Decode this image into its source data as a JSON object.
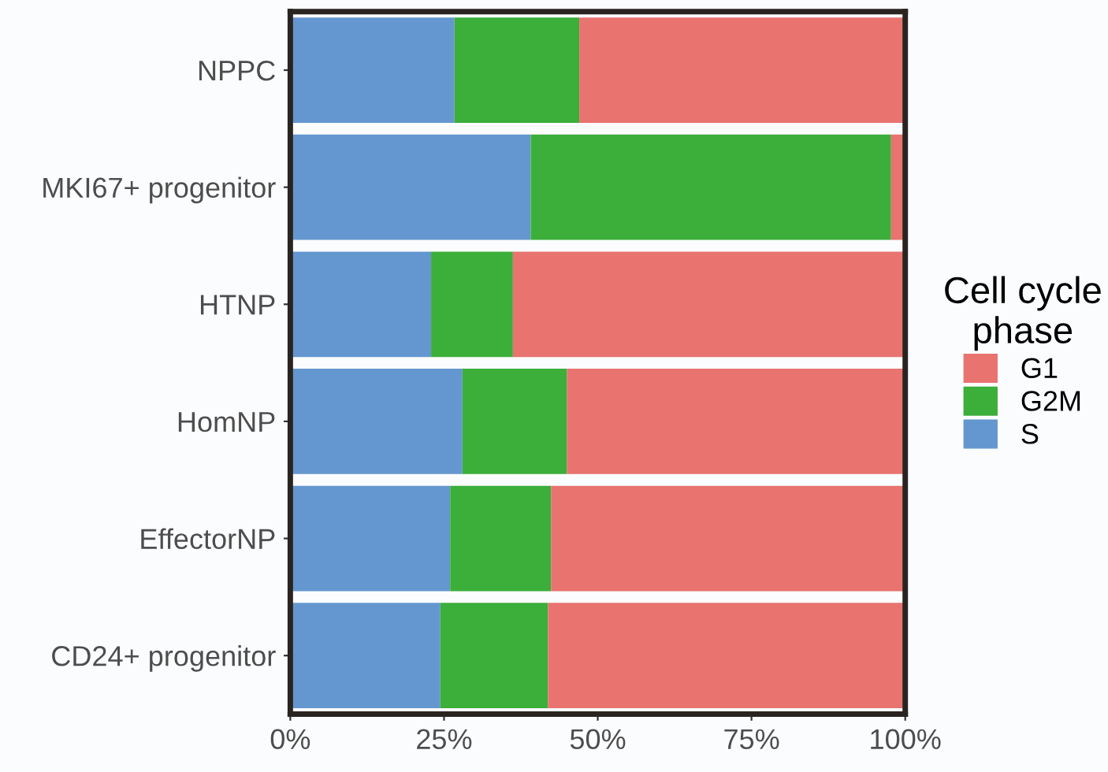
{
  "chart_data": {
    "type": "bar",
    "orientation": "horizontal",
    "stacked": true,
    "legend_title": "Cell cycle\nphase",
    "legend": "right",
    "grid": false,
    "categories": [
      "NPPC",
      "MKI67+ progenitor",
      "HTNP",
      "HomNP",
      "EffectorNP",
      "CD24+ progenitor"
    ],
    "series": [
      {
        "name": "S",
        "color": "#6497d0",
        "values": [
          26.7,
          39.1,
          22.9,
          28.0,
          26.0,
          24.4
        ]
      },
      {
        "name": "G2M",
        "color": "#3cae3a",
        "values": [
          20.3,
          58.6,
          13.3,
          17.0,
          16.4,
          17.5
        ]
      },
      {
        "name": "G1",
        "color": "#e8736f",
        "values": [
          53.0,
          2.3,
          63.8,
          55.0,
          57.6,
          58.1
        ]
      }
    ],
    "xlim": [
      0,
      100
    ],
    "xticks": [
      {
        "value": 0,
        "label": "0%"
      },
      {
        "value": 25,
        "label": "25%"
      },
      {
        "value": 50,
        "label": "50%"
      },
      {
        "value": 75,
        "label": "75%"
      },
      {
        "value": 100,
        "label": "100%"
      }
    ]
  }
}
